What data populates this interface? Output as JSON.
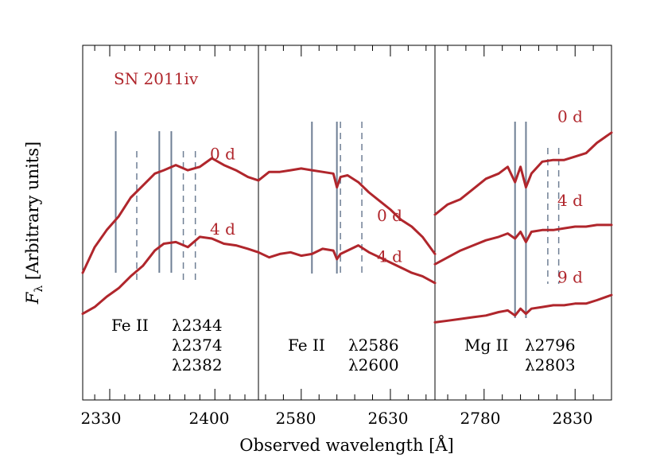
{
  "colors": {
    "spectrum": "#b0262c",
    "line_marker": "#6f7f95",
    "frame": "#000000"
  },
  "chart_data": [
    {
      "type": "line",
      "panel": "Fe II 2344/2374/2382",
      "xlabel": "Observed wavelength [Å]",
      "ylabel": "F_λ [Arbitrary units]",
      "ylabel_main": "F",
      "ylabel_sub": "λ",
      "ylabel_rest": " [Arbitrary units]",
      "xlim": [
        2312,
        2429
      ],
      "ylim": [
        0,
        1
      ],
      "x_ticks": [
        "2330",
        "2400"
      ],
      "x_tick_values": [
        2330,
        2400
      ],
      "annotation_title": "SN 2011iv",
      "line_ids": {
        "species": "Fe II",
        "wavelengths": [
          "λ2344",
          "λ2374",
          "λ2382"
        ]
      },
      "solid_markers": [
        2334,
        2363,
        2371
      ],
      "dashed_markers": [
        2348,
        2379,
        2387
      ],
      "series": [
        {
          "name": "0 d",
          "x": [
            2312,
            2320,
            2328,
            2336,
            2344,
            2352,
            2360,
            2366,
            2374,
            2382,
            2390,
            2398,
            2406,
            2414,
            2422,
            2429
          ],
          "y": [
            0.365,
            0.44,
            0.49,
            0.53,
            0.585,
            0.62,
            0.655,
            0.665,
            0.68,
            0.665,
            0.675,
            0.7,
            0.68,
            0.665,
            0.645,
            0.635
          ]
        },
        {
          "name": "4 d",
          "x": [
            2312,
            2320,
            2328,
            2336,
            2344,
            2352,
            2360,
            2366,
            2374,
            2382,
            2390,
            2398,
            2406,
            2414,
            2422,
            2429
          ],
          "y": [
            0.245,
            0.265,
            0.295,
            0.32,
            0.355,
            0.385,
            0.43,
            0.45,
            0.455,
            0.44,
            0.47,
            0.465,
            0.45,
            0.445,
            0.435,
            0.425
          ]
        }
      ]
    },
    {
      "type": "line",
      "panel": "Fe II 2586/2600",
      "xlim": [
        2556,
        2655
      ],
      "ylim": [
        0,
        1
      ],
      "x_ticks": [
        "2580",
        "2630"
      ],
      "x_tick_values": [
        2580,
        2630
      ],
      "line_ids": {
        "species": "Fe II",
        "wavelengths": [
          "λ2586",
          "λ2600"
        ]
      },
      "solid_markers": [
        2586,
        2600
      ],
      "dashed_markers": [
        2602,
        2614
      ],
      "series": [
        {
          "name": "0 d",
          "x": [
            2556,
            2562,
            2568,
            2574,
            2580,
            2586,
            2592,
            2598,
            2600,
            2602,
            2606,
            2612,
            2618,
            2624,
            2630,
            2636,
            2642,
            2648,
            2655
          ],
          "y": [
            0.635,
            0.66,
            0.66,
            0.665,
            0.67,
            0.665,
            0.66,
            0.655,
            0.615,
            0.645,
            0.65,
            0.63,
            0.6,
            0.575,
            0.55,
            0.52,
            0.5,
            0.47,
            0.42
          ]
        },
        {
          "name": "4 d",
          "x": [
            2556,
            2562,
            2568,
            2574,
            2580,
            2586,
            2592,
            2598,
            2600,
            2602,
            2606,
            2612,
            2618,
            2624,
            2630,
            2636,
            2642,
            2648,
            2655
          ],
          "y": [
            0.425,
            0.41,
            0.42,
            0.425,
            0.415,
            0.42,
            0.435,
            0.43,
            0.405,
            0.42,
            0.43,
            0.445,
            0.425,
            0.41,
            0.395,
            0.38,
            0.365,
            0.355,
            0.335
          ]
        }
      ]
    },
    {
      "type": "line",
      "panel": "Mg II 2796/2803",
      "xlim": [
        2753,
        2850
      ],
      "ylim": [
        0,
        1
      ],
      "x_ticks": [
        "2780",
        "2830"
      ],
      "x_tick_values": [
        2780,
        2830
      ],
      "line_ids": {
        "species": "Mg II",
        "wavelengths": [
          "λ2796",
          "λ2803"
        ]
      },
      "solid_markers": [
        2797,
        2803
      ],
      "dashed_markers": [
        2815,
        2821
      ],
      "series": [
        {
          "name": "0 d",
          "x": [
            2753,
            2760,
            2767,
            2774,
            2781,
            2788,
            2793,
            2797,
            2800,
            2803,
            2806,
            2812,
            2818,
            2824,
            2830,
            2836,
            2842,
            2850
          ],
          "y": [
            0.535,
            0.565,
            0.58,
            0.61,
            0.64,
            0.655,
            0.675,
            0.63,
            0.675,
            0.615,
            0.655,
            0.69,
            0.695,
            0.695,
            0.705,
            0.715,
            0.745,
            0.775
          ]
        },
        {
          "name": "4 d",
          "x": [
            2753,
            2760,
            2767,
            2774,
            2781,
            2788,
            2793,
            2797,
            2800,
            2803,
            2806,
            2812,
            2818,
            2824,
            2830,
            2836,
            2842,
            2850
          ],
          "y": [
            0.39,
            0.41,
            0.43,
            0.445,
            0.46,
            0.47,
            0.48,
            0.465,
            0.485,
            0.455,
            0.485,
            0.49,
            0.49,
            0.495,
            0.5,
            0.5,
            0.505,
            0.505
          ]
        },
        {
          "name": "9 d",
          "x": [
            2753,
            2760,
            2767,
            2774,
            2781,
            2788,
            2793,
            2797,
            2800,
            2803,
            2806,
            2812,
            2818,
            2824,
            2830,
            2836,
            2842,
            2850
          ],
          "y": [
            0.22,
            0.225,
            0.23,
            0.235,
            0.24,
            0.25,
            0.255,
            0.24,
            0.26,
            0.245,
            0.26,
            0.265,
            0.27,
            0.27,
            0.275,
            0.275,
            0.285,
            0.3
          ]
        }
      ]
    }
  ]
}
